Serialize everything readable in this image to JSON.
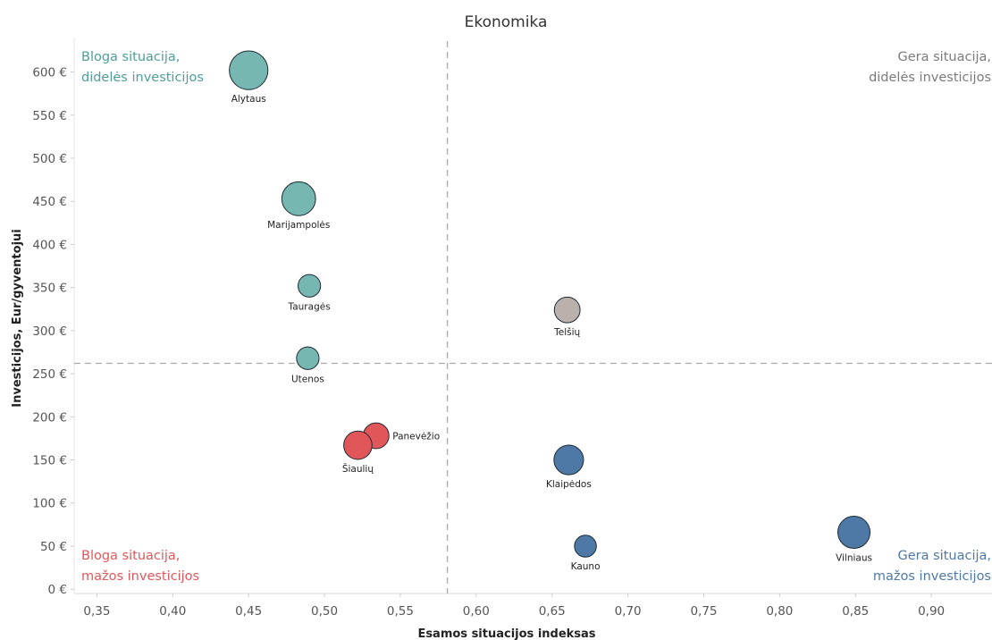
{
  "chart_data": {
    "type": "scatter",
    "title": "Ekonomika",
    "xlabel": "Esamos situacijos indeksas",
    "ylabel": "Investicijos, Eur/gyventojui",
    "xlim": [
      0.335,
      0.94
    ],
    "ylim": [
      -5,
      640
    ],
    "x_ticks": [
      "0,35",
      "0,40",
      "0,45",
      "0,50",
      "0,55",
      "0,60",
      "0,65",
      "0,70",
      "0,75",
      "0,80",
      "0,85",
      "0,90"
    ],
    "y_ticks": [
      "0 €",
      "50 €",
      "100 €",
      "150 €",
      "200 €",
      "250 €",
      "300 €",
      "350 €",
      "400 €",
      "450 €",
      "500 €",
      "550 €",
      "600 €"
    ],
    "reference_lines": {
      "x": 0.581,
      "y": 262
    },
    "grid": false,
    "colors": {
      "teal": "#76b7b2",
      "red": "#e15759",
      "blue": "#4e79a7",
      "grey": "#bab0ac"
    },
    "points": [
      {
        "name": "Alytaus",
        "x": 0.45,
        "y": 602,
        "size": 1.2,
        "color": "#76b7b2",
        "label_pos": "below"
      },
      {
        "name": "Marijampolės",
        "x": 0.483,
        "y": 453,
        "size": 1.05,
        "color": "#76b7b2",
        "label_pos": "below"
      },
      {
        "name": "Tauragės",
        "x": 0.49,
        "y": 352,
        "size": 0.7,
        "color": "#76b7b2",
        "label_pos": "below"
      },
      {
        "name": "Utenos",
        "x": 0.489,
        "y": 268,
        "size": 0.7,
        "color": "#76b7b2",
        "label_pos": "below"
      },
      {
        "name": "Panevėžio",
        "x": 0.534,
        "y": 178,
        "size": 0.8,
        "color": "#e15759",
        "label_pos": "right"
      },
      {
        "name": "Šiaulių",
        "x": 0.522,
        "y": 167,
        "size": 0.88,
        "color": "#e15759",
        "label_pos": "below"
      },
      {
        "name": "Telšių",
        "x": 0.66,
        "y": 324,
        "size": 0.8,
        "color": "#bab0ac",
        "label_pos": "below"
      },
      {
        "name": "Klaipėdos",
        "x": 0.661,
        "y": 150,
        "size": 0.92,
        "color": "#4e79a7",
        "label_pos": "below"
      },
      {
        "name": "Kauno",
        "x": 0.672,
        "y": 50,
        "size": 0.68,
        "color": "#4e79a7",
        "label_pos": "below"
      },
      {
        "name": "Vilniaus",
        "x": 0.849,
        "y": 66,
        "size": 1.0,
        "color": "#4e79a7",
        "label_pos": "below"
      }
    ],
    "quadrant_labels": {
      "top_left": {
        "line1": "Bloga situacija,",
        "line2": "didelės investicijos",
        "color": "#4e9e99"
      },
      "top_right": {
        "line1": "Gera situacija,",
        "line2": "didelės investicijos",
        "color": "#7a7a7a"
      },
      "bottom_left": {
        "line1": "Bloga situacija,",
        "line2": "mažos investicijos",
        "color": "#e15759"
      },
      "bottom_right": {
        "line1": "Gera situacija,",
        "line2": "mažos investicijos",
        "color": "#4e79a7"
      }
    }
  }
}
